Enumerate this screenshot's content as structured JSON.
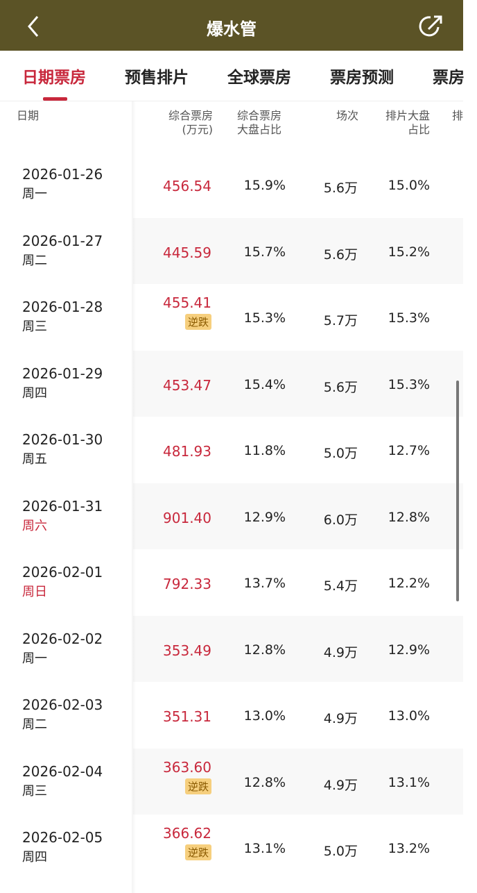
{
  "header": {
    "title": "爆水管"
  },
  "tabs": [
    {
      "label": "日期票房",
      "active": true
    },
    {
      "label": "预售排片"
    },
    {
      "label": "全球票房"
    },
    {
      "label": "票房预测"
    },
    {
      "label": "票房"
    }
  ],
  "columns": [
    [
      "日期"
    ],
    [
      "综合票房",
      "(万元)"
    ],
    [
      "综合票房",
      "大盘占比"
    ],
    [
      "场次"
    ],
    [
      "排片大盘",
      "占比"
    ],
    [
      "排"
    ]
  ],
  "rows": [
    {
      "date": "2026-01-26",
      "weekday": "周一",
      "box_office": "456.54",
      "share": "15.9%",
      "shows": "5.6万",
      "schedule_share": "15.0%"
    },
    {
      "date": "2026-01-27",
      "weekday": "周二",
      "box_office": "445.59",
      "share": "15.7%",
      "shows": "5.6万",
      "schedule_share": "15.2%"
    },
    {
      "date": "2026-01-28",
      "weekday": "周三",
      "box_office": "455.41",
      "badge": "逆跌",
      "share": "15.3%",
      "shows": "5.7万",
      "schedule_share": "15.3%"
    },
    {
      "date": "2026-01-29",
      "weekday": "周四",
      "box_office": "453.47",
      "share": "15.4%",
      "shows": "5.6万",
      "schedule_share": "15.3%"
    },
    {
      "date": "2026-01-30",
      "weekday": "周五",
      "box_office": "481.93",
      "share": "11.8%",
      "shows": "5.0万",
      "schedule_share": "12.7%"
    },
    {
      "date": "2026-01-31",
      "weekday": "周六",
      "weekday_color": "#c8283c",
      "box_office": "901.40",
      "share": "12.9%",
      "shows": "6.0万",
      "schedule_share": "12.8%"
    },
    {
      "date": "2026-02-01",
      "weekday": "周日",
      "weekday_color": "#c8283c",
      "box_office": "792.33",
      "share": "13.7%",
      "shows": "5.4万",
      "schedule_share": "12.2%"
    },
    {
      "date": "2026-02-02",
      "weekday": "周一",
      "box_office": "353.49",
      "share": "12.8%",
      "shows": "4.9万",
      "schedule_share": "12.9%"
    },
    {
      "date": "2026-02-03",
      "weekday": "周二",
      "box_office": "351.31",
      "share": "13.0%",
      "shows": "4.9万",
      "schedule_share": "13.0%"
    },
    {
      "date": "2026-02-04",
      "weekday": "周三",
      "box_office": "363.60",
      "badge": "逆跌",
      "share": "12.8%",
      "shows": "4.9万",
      "schedule_share": "13.1%"
    },
    {
      "date": "2026-02-05",
      "weekday": "周四",
      "box_office": "366.62",
      "badge": "逆跌",
      "share": "13.1%",
      "shows": "5.0万",
      "schedule_share": "13.2%"
    }
  ]
}
